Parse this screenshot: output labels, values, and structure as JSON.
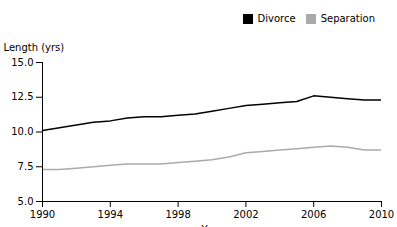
{
  "chart_data": {
    "type": "line",
    "x": [
      1990,
      1991,
      1992,
      1993,
      1994,
      1995,
      1996,
      1997,
      1998,
      1999,
      2000,
      2001,
      2002,
      2003,
      2004,
      2005,
      2006,
      2007,
      2008,
      2009,
      2010
    ],
    "series": [
      {
        "name": "Divorce",
        "color": "#000000",
        "values": [
          10.1,
          10.3,
          10.5,
          10.7,
          10.8,
          11.0,
          11.1,
          11.1,
          11.2,
          11.3,
          11.5,
          11.7,
          11.9,
          12.0,
          12.1,
          12.2,
          12.6,
          12.5,
          12.4,
          12.3,
          12.3
        ]
      },
      {
        "name": "Separation",
        "color": "#aaaaaa",
        "values": [
          7.3,
          7.3,
          7.4,
          7.5,
          7.6,
          7.7,
          7.7,
          7.7,
          7.8,
          7.9,
          8.0,
          8.2,
          8.5,
          8.6,
          8.7,
          8.8,
          8.9,
          9.0,
          8.9,
          8.7,
          8.7
        ]
      }
    ],
    "xlabel": "Year",
    "ylabel": "Length (yrs)",
    "xlim": [
      1990,
      2010
    ],
    "ylim": [
      5.0,
      15.0
    ],
    "xticks": [
      1990,
      1994,
      1998,
      2002,
      2006,
      2010
    ],
    "yticks": [
      {
        "value": 5,
        "label": "5.0"
      },
      7.5,
      {
        "value": 10,
        "label": "10.0"
      },
      12.5,
      {
        "value": 15,
        "label": "15.0"
      }
    ],
    "grid": false,
    "legend": "upper right"
  }
}
